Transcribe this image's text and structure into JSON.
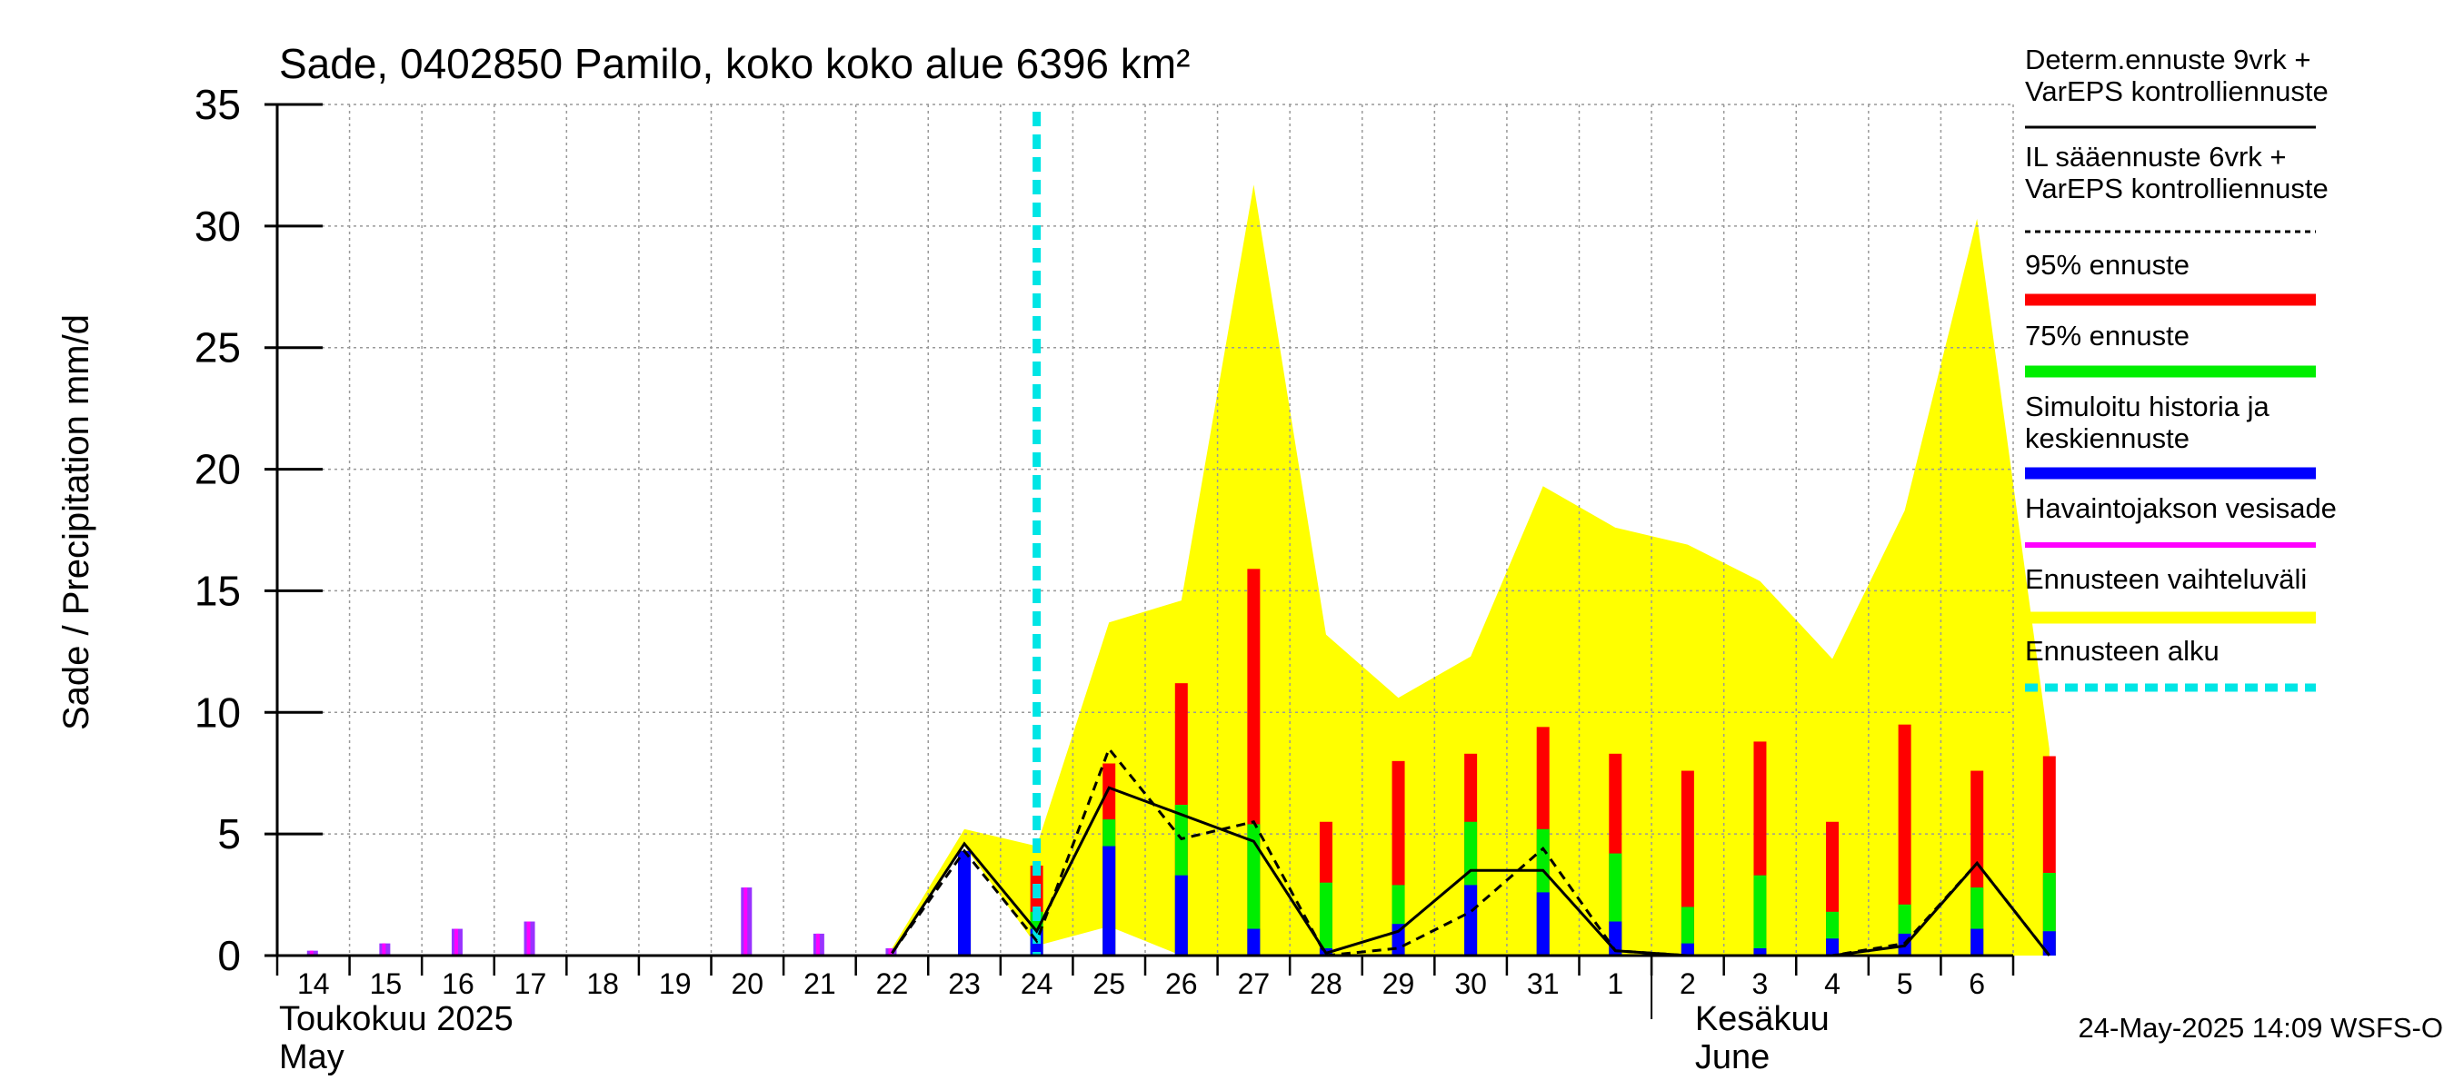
{
  "chart_data": {
    "type": "bar",
    "title": "Sade, 0402850 Pamilo, koko koko alue 6396 km²",
    "ylabel": "Sade / Precipitation   mm/d",
    "ylim": [
      0,
      35
    ],
    "yticks": [
      0,
      5,
      10,
      15,
      20,
      25,
      30,
      35
    ],
    "grid": true,
    "x_labels": [
      "14",
      "15",
      "16",
      "17",
      "18",
      "19",
      "20",
      "21",
      "22",
      "23",
      "24",
      "25",
      "26",
      "27",
      "28",
      "29",
      "30",
      "31",
      "1",
      "2",
      "3",
      "4",
      "5",
      "6"
    ],
    "month_labels": [
      {
        "line1": "Toukokuu  2025",
        "line2": "May",
        "at_index": 0
      },
      {
        "line1": "Kesäkuu",
        "line2": "June",
        "at_index": 19
      }
    ],
    "forecast_start_index": 10,
    "observed_precip": [
      {
        "day": 0,
        "value": 0.2
      },
      {
        "day": 1,
        "value": 0.5
      },
      {
        "day": 2,
        "value": 1.1
      },
      {
        "day": 3,
        "value": 1.4
      },
      {
        "day": 6,
        "value": 2.8
      },
      {
        "day": 7,
        "value": 0.9
      },
      {
        "day": 8,
        "value": 0.3
      }
    ],
    "forecast_bars": [
      {
        "day": 9,
        "p95": 4.3,
        "p75": 4.3,
        "median": 4.3
      },
      {
        "day": 10,
        "p95": 3.7,
        "p75": 1.8,
        "median": 1.1
      },
      {
        "day": 11,
        "p95": 7.9,
        "p75": 5.6,
        "median": 4.5
      },
      {
        "day": 12,
        "p95": 11.2,
        "p75": 6.2,
        "median": 3.3
      },
      {
        "day": 13,
        "p95": 15.9,
        "p75": 5.4,
        "median": 1.1
      },
      {
        "day": 14,
        "p95": 5.5,
        "p75": 3.0,
        "median": 0.3
      },
      {
        "day": 15,
        "p95": 8.0,
        "p75": 2.9,
        "median": 1.3
      },
      {
        "day": 16,
        "p95": 8.3,
        "p75": 5.5,
        "median": 2.9
      },
      {
        "day": 17,
        "p95": 9.4,
        "p75": 5.2,
        "median": 2.6
      },
      {
        "day": 18,
        "p95": 8.3,
        "p75": 4.2,
        "median": 1.4
      },
      {
        "day": 19,
        "p95": 7.6,
        "p75": 2.0,
        "median": 0.5
      },
      {
        "day": 20,
        "p95": 8.8,
        "p75": 3.3,
        "median": 0.3
      },
      {
        "day": 21,
        "p95": 5.5,
        "p75": 1.8,
        "median": 0.7
      },
      {
        "day": 22,
        "p95": 9.5,
        "p75": 2.1,
        "median": 0.9
      },
      {
        "day": 23,
        "p95": 7.6,
        "p75": 2.8,
        "median": 1.1
      },
      {
        "day": 24,
        "p95": 8.2,
        "p75": 3.4,
        "median": 1.0
      }
    ],
    "determ_line": {
      "x": [
        8,
        9,
        10,
        11,
        13,
        14,
        15,
        16,
        17,
        18,
        19,
        20,
        21,
        22,
        23,
        24
      ],
      "y": [
        0.1,
        4.6,
        1.0,
        6.9,
        4.7,
        0.1,
        1.0,
        3.5,
        3.5,
        0.2,
        0.0,
        0.0,
        0.0,
        0.4,
        3.8,
        0.0
      ]
    },
    "il_line": {
      "x": [
        8,
        9,
        10,
        11,
        12,
        13,
        14,
        15,
        16,
        17,
        18,
        19,
        20,
        21,
        22,
        23,
        24
      ],
      "y": [
        0.1,
        4.3,
        0.6,
        8.5,
        4.8,
        5.5,
        0.0,
        0.3,
        1.8,
        4.4,
        0.2,
        0.0,
        0.0,
        0.0,
        0.5,
        3.8,
        0.0
      ]
    },
    "range_band": {
      "x": [
        8,
        9,
        10,
        11,
        12,
        13,
        14,
        15,
        16,
        17,
        18,
        19,
        20,
        21,
        22,
        23,
        24
      ],
      "upper": [
        0.3,
        5.2,
        4.5,
        13.7,
        14.6,
        31.7,
        13.2,
        10.6,
        12.3,
        19.3,
        17.6,
        16.9,
        15.4,
        12.2,
        18.3,
        30.3,
        8.5
      ],
      "lower": [
        0.0,
        4.5,
        0.4,
        1.2,
        0.0,
        0.0,
        0.0,
        0.0,
        0.0,
        0.0,
        0.0,
        0.0,
        0.0,
        0.0,
        0.0,
        0.0,
        0.0
      ]
    },
    "legend": [
      {
        "label1": "Determ.ennuste 9vrk +",
        "label2": "VarEPS kontrolliennuste",
        "style": "line",
        "color": "#000000"
      },
      {
        "label1": "IL sääennuste 6vrk  +",
        "label2": "  VarEPS kontrolliennuste",
        "style": "dashed",
        "color": "#000000"
      },
      {
        "label1": "95% ennuste",
        "label2": "",
        "style": "bar",
        "color": "#ff0000"
      },
      {
        "label1": "75% ennuste",
        "label2": "",
        "style": "bar",
        "color": "#00ee00"
      },
      {
        "label1": "Simuloitu historia ja",
        "label2": "keskiennuste",
        "style": "bar",
        "color": "#0000ff"
      },
      {
        "label1": "Havaintojakson vesisade",
        "label2": "",
        "style": "thin",
        "color": "#ff00ff"
      },
      {
        "label1": "Ennusteen vaihteluväli",
        "label2": "",
        "style": "bar",
        "color": "#ffff00"
      },
      {
        "label1": "Ennusteen alku",
        "label2": "",
        "style": "cyan-dashed",
        "color": "#00e5e5"
      }
    ],
    "timestamp": "24-May-2025 14:09 WSFS-O"
  },
  "colors": {
    "red": "#ff0000",
    "green": "#00ee00",
    "blue": "#0000ff",
    "magenta": "#ff00ff",
    "purple": "#9933ff",
    "yellow": "#ffff00",
    "cyan": "#00e5e5",
    "grid": "#999999"
  }
}
